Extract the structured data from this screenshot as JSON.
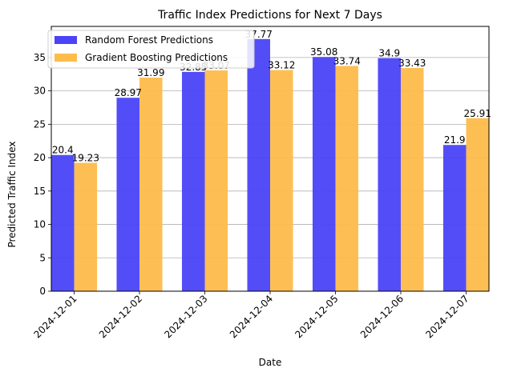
{
  "chart_data": {
    "type": "bar",
    "title": "Traffic Index Predictions for Next 7 Days",
    "xlabel": "Date",
    "ylabel": "Predicted Traffic Index",
    "categories": [
      "2024-12-01",
      "2024-12-02",
      "2024-12-03",
      "2024-12-04",
      "2024-12-05",
      "2024-12-06",
      "2024-12-07"
    ],
    "series": [
      {
        "name": "Random Forest Predictions",
        "color": "#4a43f8",
        "values": [
          20.4,
          28.97,
          32.85,
          37.77,
          35.08,
          34.9,
          21.9
        ],
        "labels": [
          "20.4",
          "28.97",
          "32.85",
          "37.77",
          "35.08",
          "34.9",
          "21.9"
        ]
      },
      {
        "name": "Gradient Boosting Predictions",
        "color": "#fdbc4b",
        "values": [
          19.23,
          31.99,
          33.07,
          33.12,
          33.74,
          33.43,
          25.91
        ],
        "labels": [
          "19.23",
          "31.99",
          "33.07",
          "33.12",
          "33.74",
          "33.43",
          "25.91"
        ]
      }
    ],
    "ylim": [
      0,
      39.66
    ],
    "yticks": [
      0,
      5,
      10,
      15,
      20,
      25,
      30,
      35
    ],
    "grid": "y",
    "legend": "top-left"
  }
}
